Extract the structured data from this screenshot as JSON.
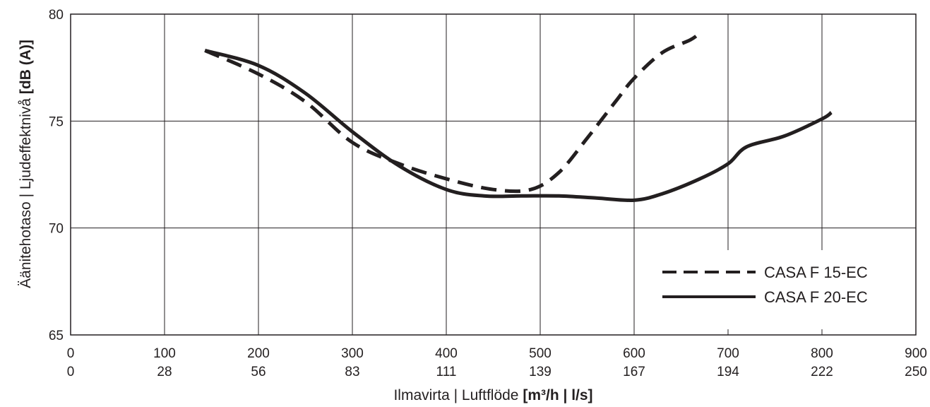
{
  "chart_data": {
    "type": "line",
    "title": "",
    "xlabel": {
      "text": "Ilmavirta | Luftflöde ",
      "unit": "[m³/h | l/s]"
    },
    "ylabel": {
      "text": "Äänitehotaso | Ljudeffektnivå ",
      "unit": "[dB (A)]"
    },
    "xlim": [
      0,
      900
    ],
    "ylim": [
      65,
      80
    ],
    "x_ticks": [
      0,
      100,
      200,
      300,
      400,
      500,
      600,
      700,
      800,
      900
    ],
    "x_ticks_secondary": [
      "0",
      "28",
      "56",
      "83",
      "111",
      "139",
      "167",
      "194",
      "222",
      "250"
    ],
    "y_ticks": [
      65,
      70,
      75,
      80
    ],
    "grid": true,
    "legend": "bottom-right",
    "colors": {
      "line": "#231f20",
      "grid": "#231f20",
      "background": "#ffffff"
    },
    "series": [
      {
        "name": "CASA F 15-EC",
        "style": "dashed",
        "points": [
          [
            143,
            78.3
          ],
          [
            200,
            77.2
          ],
          [
            250,
            75.9
          ],
          [
            300,
            74.0
          ],
          [
            350,
            73.0
          ],
          [
            400,
            72.3
          ],
          [
            450,
            71.8
          ],
          [
            490,
            71.8
          ],
          [
            520,
            72.6
          ],
          [
            550,
            74.2
          ],
          [
            580,
            75.9
          ],
          [
            600,
            77.0
          ],
          [
            630,
            78.2
          ],
          [
            660,
            78.8
          ],
          [
            672,
            79.2
          ]
        ]
      },
      {
        "name": "CASA F 20-EC",
        "style": "solid",
        "points": [
          [
            143,
            78.3
          ],
          [
            200,
            77.6
          ],
          [
            250,
            76.3
          ],
          [
            300,
            74.5
          ],
          [
            350,
            72.9
          ],
          [
            400,
            71.8
          ],
          [
            440,
            71.5
          ],
          [
            480,
            71.5
          ],
          [
            520,
            71.5
          ],
          [
            560,
            71.4
          ],
          [
            600,
            71.3
          ],
          [
            630,
            71.6
          ],
          [
            670,
            72.3
          ],
          [
            700,
            73.0
          ],
          [
            720,
            73.8
          ],
          [
            760,
            74.3
          ],
          [
            800,
            75.1
          ],
          [
            810,
            75.4
          ]
        ]
      }
    ]
  }
}
